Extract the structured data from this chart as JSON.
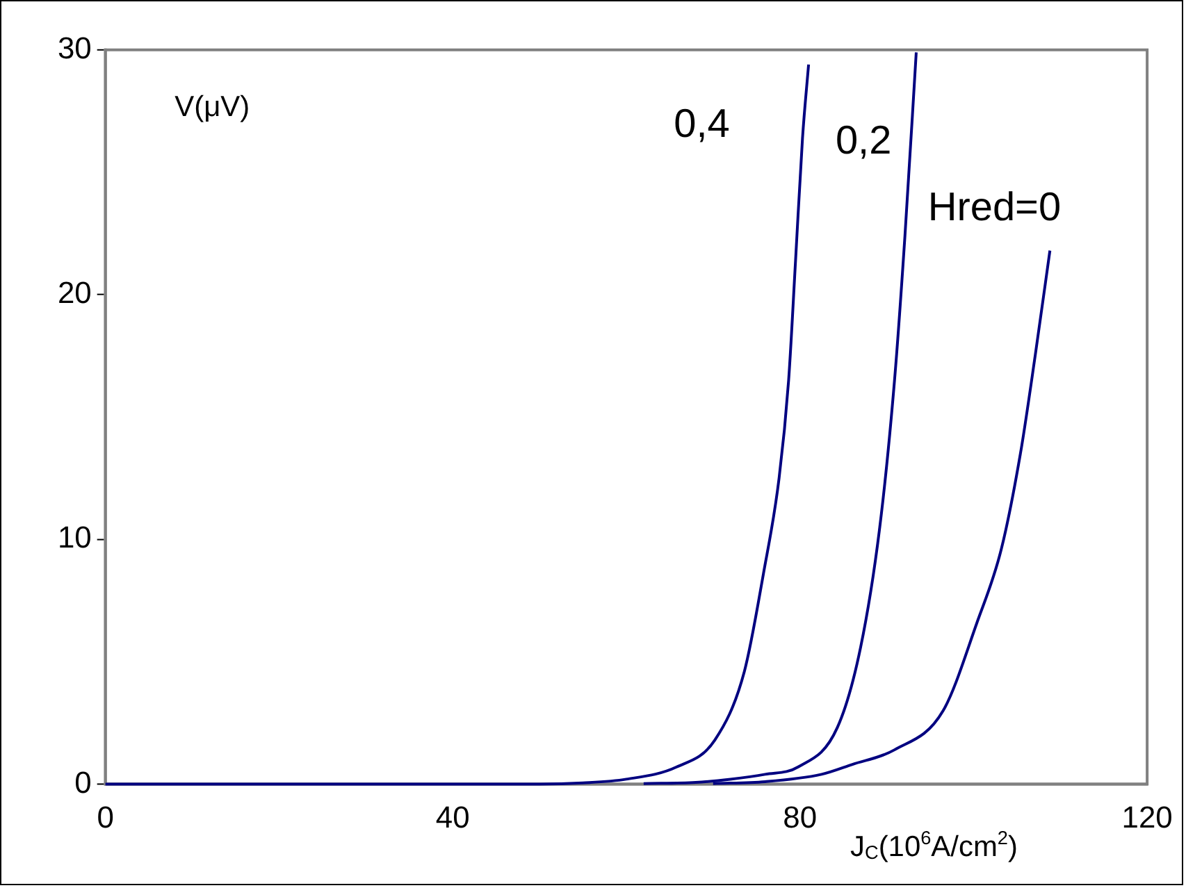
{
  "chart_data": {
    "type": "line",
    "xlabel": "J$_{C}$(10$^{6}$A/cm$^{2}$)",
    "ylabel": "V(μV)",
    "xlim": [
      0,
      120
    ],
    "xticks": [
      0,
      40,
      80,
      120
    ],
    "ylim": [
      0,
      30
    ],
    "yticks": [
      0,
      10,
      20,
      30
    ],
    "grid": false,
    "legend": false,
    "marker": "none",
    "line_style": "solid",
    "series": [
      {
        "name": "0,4",
        "color": "#000080",
        "x": [
          0,
          50,
          55,
          60,
          65.8,
          70.2,
          73.6,
          75.8,
          77.6,
          78.7,
          79.5,
          80.3,
          81.0
        ],
        "values": [
          0,
          0,
          0.05,
          0.2,
          0.7,
          1.8,
          4.6,
          8.6,
          12.5,
          16.5,
          21.4,
          26.4,
          29.4
        ]
      },
      {
        "name": "0,2",
        "color": "#000080",
        "x": [
          62,
          68,
          72,
          76,
          79.8,
          84.3,
          87.0,
          89.2,
          90.9,
          92.1,
          93.4
        ],
        "values": [
          0.02,
          0.07,
          0.2,
          0.4,
          0.7,
          2.3,
          5.6,
          10.5,
          16.5,
          22.4,
          29.9
        ]
      },
      {
        "name": "Hred=0",
        "color": "#000080",
        "x": [
          70,
          76,
          82.5,
          86,
          90.9,
          96.5,
          100.4,
          103.2,
          105.4,
          107.1,
          108.8
        ],
        "values": [
          0.02,
          0.1,
          0.4,
          0.8,
          1.4,
          3.0,
          6.6,
          9.6,
          13.5,
          17.5,
          21.8
        ]
      }
    ]
  }
}
